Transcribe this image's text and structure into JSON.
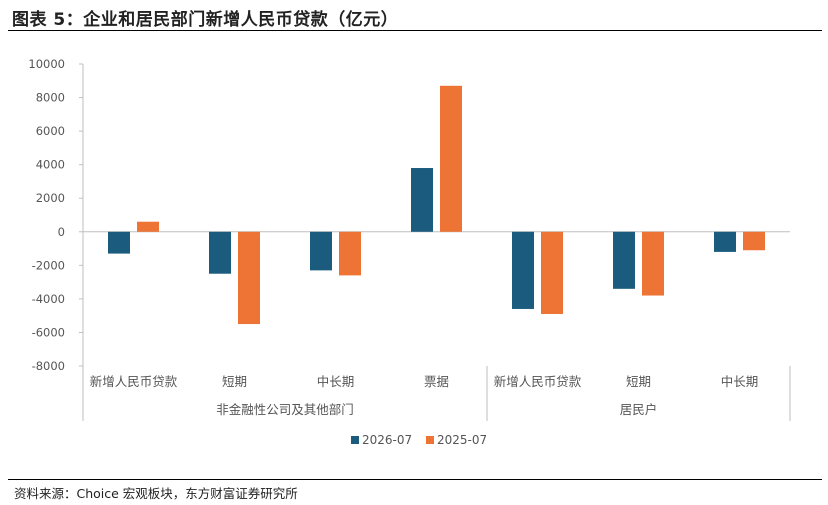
{
  "header": {
    "title": "图表 5：企业和居民部门新增人民币贷款（亿元）"
  },
  "footer": {
    "source": "资料来源：Choice 宏观板块，东方财富证券研究所"
  },
  "chart_data": {
    "type": "bar",
    "title": "图表 5：企业和居民部门新增人民币贷款（亿元）",
    "categories": [
      "新增人民币贷款",
      "短期",
      "中长期",
      "票据",
      "新增人民币贷款",
      "短期",
      "中长期"
    ],
    "groups": [
      {
        "label": "非金融性公司及其他部门",
        "span": [
          0,
          3
        ]
      },
      {
        "label": "居民户",
        "span": [
          4,
          6
        ]
      }
    ],
    "series": [
      {
        "name": "2026-07",
        "color": "#1b5b7e",
        "values": [
          -1300,
          -2500,
          -2300,
          3800,
          -4600,
          -3400,
          -1200
        ]
      },
      {
        "name": "2025-07",
        "color": "#ed7434",
        "values": [
          600,
          -5500,
          -2600,
          8700,
          -4900,
          -3800,
          -1100
        ]
      }
    ],
    "ylim": [
      -8000,
      10000
    ],
    "yticks": [
      -8000,
      -6000,
      -4000,
      -2000,
      0,
      2000,
      4000,
      6000,
      8000,
      10000
    ],
    "ytick_labels": [
      "-8000",
      "-6000",
      "-4000",
      "-2000",
      "0",
      "2000",
      "4000",
      "6000",
      "8000",
      "10000"
    ],
    "legend_position": "bottom-center",
    "grid": false
  }
}
